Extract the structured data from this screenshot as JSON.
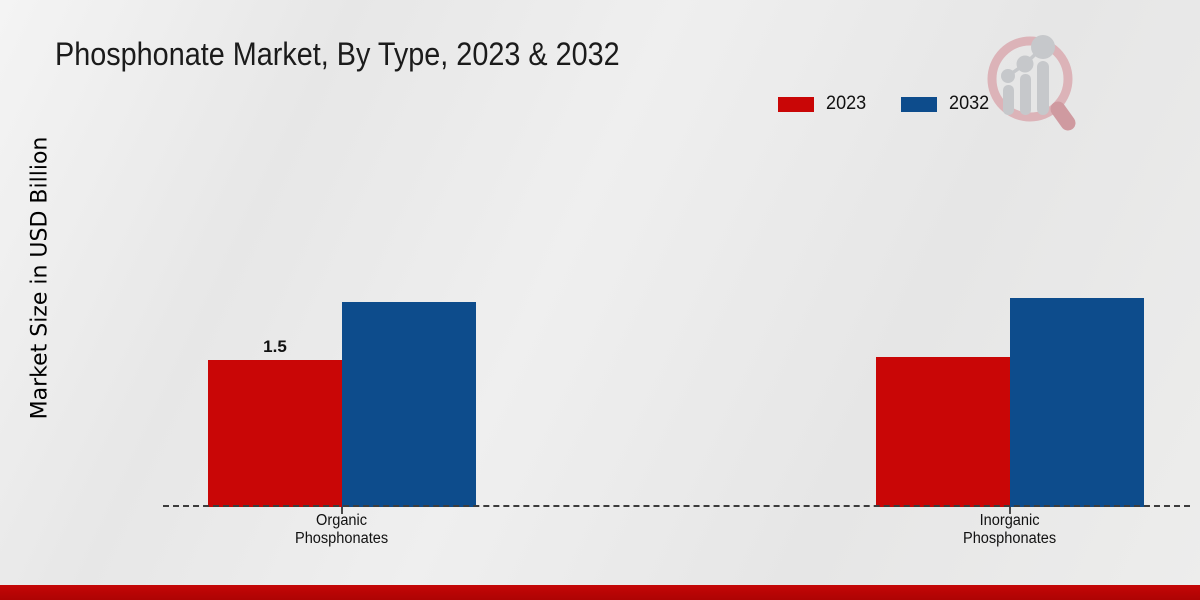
{
  "chart": {
    "title": "Phosphonate Market, By Type, 2023 & 2032",
    "ylabel": "Market Size in USD Billion"
  },
  "chart_data": {
    "type": "bar",
    "title": "Phosphonate Market, By Type, 2023 & 2032",
    "xlabel": "",
    "ylabel": "Market Size in USD Billion",
    "categories": [
      "Organic Phosphonates",
      "Inorganic Phosphonates"
    ],
    "category_label_lines": [
      [
        "Organic",
        "Phosphonates"
      ],
      [
        "Inorganic",
        "Phosphonates"
      ]
    ],
    "series": [
      {
        "name": "2023",
        "color": "#c90606",
        "values": [
          1.5,
          1.53
        ]
      },
      {
        "name": "2032",
        "color": "#0d4c8c",
        "values": [
          2.09,
          2.13
        ]
      }
    ],
    "bar_labels": [
      {
        "category_index": 0,
        "series_index": 0,
        "text": "1.5"
      }
    ],
    "ylim": [
      0,
      2.5
    ],
    "grid": false,
    "legend_position": "top-right",
    "baseline_style": "dashed",
    "y_axis_visible": false
  },
  "colors": {
    "series_2023": "#c90606",
    "series_2032": "#0d4c8c",
    "footer_accent": "#c40606",
    "title_text": "#1b1b1b"
  },
  "icons": {
    "watermark": "magnifier-bar-chart-logo"
  }
}
